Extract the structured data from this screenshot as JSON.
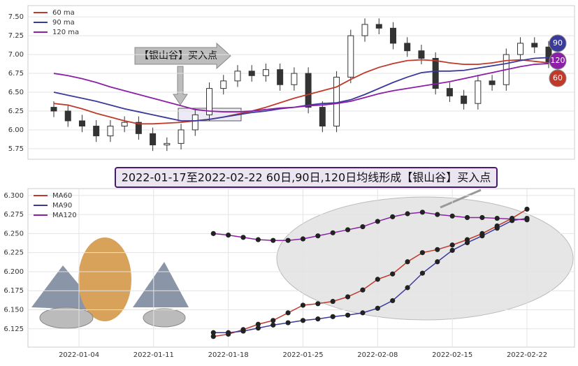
{
  "chart_data": [
    {
      "type": "candlestick",
      "annotation": "【银山谷】买入点",
      "ylim": [
        5.61,
        7.65
      ],
      "yticks": [
        5.75,
        {
          "value": 6,
          "label": "6.00"
        },
        6.25,
        {
          "value": 6.5,
          "label": "6.50"
        },
        6.75,
        {
          "value": 7,
          "label": "7.00"
        },
        7.25,
        {
          "value": 7.5,
          "label": "7.50"
        }
      ],
      "grid": true,
      "legend": "upper left",
      "candles": {
        "color": "#333333",
        "open": [
          6.3,
          6.25,
          6.12,
          6.05,
          5.92,
          6.05,
          6.1,
          5.95,
          5.8,
          5.82,
          6.0,
          6.2,
          6.55,
          6.65,
          6.78,
          6.72,
          6.8,
          6.6,
          6.75,
          6.3,
          6.05,
          6.7,
          7.25,
          7.4,
          7.35,
          7.15,
          7.05,
          6.95,
          6.55,
          6.45,
          6.35,
          6.65,
          6.6,
          7.0,
          7.15,
          7.1
        ],
        "high": [
          6.38,
          6.33,
          6.2,
          6.13,
          6.13,
          6.18,
          6.18,
          6.03,
          5.9,
          6.08,
          6.28,
          6.63,
          6.73,
          6.86,
          6.86,
          6.88,
          6.88,
          6.83,
          6.83,
          6.38,
          6.78,
          7.33,
          7.48,
          7.48,
          7.43,
          7.23,
          7.13,
          7.03,
          6.63,
          6.53,
          6.73,
          6.73,
          7.08,
          7.23,
          7.23,
          7.18
        ],
        "low": [
          6.17,
          6.04,
          5.97,
          5.84,
          5.84,
          5.97,
          5.87,
          5.72,
          5.72,
          5.74,
          5.92,
          6.12,
          6.47,
          6.57,
          6.64,
          6.64,
          6.52,
          6.52,
          6.22,
          5.97,
          5.97,
          6.62,
          7.17,
          7.27,
          7.07,
          6.97,
          6.87,
          6.47,
          6.37,
          6.27,
          6.27,
          6.52,
          6.52,
          6.92,
          7.02,
          6.82
        ],
        "close": [
          6.25,
          6.12,
          6.05,
          5.92,
          6.05,
          6.1,
          5.95,
          5.8,
          5.82,
          6.0,
          6.2,
          6.55,
          6.65,
          6.78,
          6.72,
          6.8,
          6.6,
          6.75,
          6.3,
          6.05,
          6.7,
          7.25,
          7.4,
          7.35,
          7.15,
          7.05,
          6.95,
          6.55,
          6.45,
          6.35,
          6.65,
          6.6,
          7.0,
          7.15,
          7.1,
          6.9
        ]
      },
      "series": [
        {
          "name": "60 ma",
          "color": "#c0392b",
          "end_label": "60",
          "values": [
            6.35,
            6.33,
            6.28,
            6.22,
            6.17,
            6.12,
            6.08,
            6.08,
            6.09,
            6.1,
            6.12,
            6.14,
            6.17,
            6.21,
            6.25,
            6.3,
            6.36,
            6.42,
            6.47,
            6.52,
            6.57,
            6.67,
            6.76,
            6.83,
            6.88,
            6.92,
            6.93,
            6.92,
            6.89,
            6.87,
            6.87,
            6.89,
            6.92,
            6.93,
            6.91,
            6.89
          ]
        },
        {
          "name": "90 ma",
          "color": "#3a3a9a",
          "end_label": "90",
          "values": [
            6.5,
            6.46,
            6.42,
            6.38,
            6.33,
            6.28,
            6.24,
            6.2,
            6.16,
            6.12,
            6.12,
            6.14,
            6.17,
            6.2,
            6.23,
            6.25,
            6.28,
            6.3,
            6.33,
            6.35,
            6.36,
            6.4,
            6.47,
            6.55,
            6.63,
            6.7,
            6.76,
            6.78,
            6.78,
            6.79,
            6.82,
            6.85,
            6.88,
            6.92,
            6.95,
            6.96
          ]
        },
        {
          "name": "120 ma",
          "color": "#8b1fa8",
          "end_label": "120",
          "values": [
            6.75,
            6.72,
            6.68,
            6.63,
            6.57,
            6.52,
            6.47,
            6.42,
            6.37,
            6.32,
            6.27,
            6.25,
            6.24,
            6.24,
            6.25,
            6.27,
            6.29,
            6.3,
            6.32,
            6.33,
            6.35,
            6.38,
            6.43,
            6.48,
            6.52,
            6.55,
            6.58,
            6.61,
            6.64,
            6.68,
            6.72,
            6.76,
            6.8,
            6.84,
            6.87,
            6.88
          ]
        }
      ]
    },
    {
      "type": "line",
      "title": "2022-01-17至2022-02-22 60日,90日,120日均线形成【银山谷】买入点",
      "categories": [
        "2022-01-04",
        null,
        null,
        null,
        null,
        "2022-01-11",
        null,
        null,
        null,
        null,
        "2022-01-18",
        null,
        null,
        null,
        null,
        "2022-01-25",
        null,
        null,
        null,
        null,
        "2022-02-08",
        null,
        null,
        null,
        null,
        "2022-02-15",
        null,
        null,
        null,
        null,
        "2022-02-22"
      ],
      "ylim": [
        6.101,
        6.309
      ],
      "yticks": [
        6.125,
        {
          "value": 6.15,
          "label": "6.150"
        },
        6.175,
        {
          "value": 6.2,
          "label": "6.200"
        },
        6.225,
        {
          "value": 6.25,
          "label": "6.250"
        },
        6.275,
        {
          "value": 6.3,
          "label": "6.300"
        }
      ],
      "grid": true,
      "legend": "upper left",
      "marker_color": "#222222",
      "series": [
        {
          "name": "MA60",
          "color": "#c0392b",
          "values": [
            null,
            null,
            null,
            null,
            null,
            null,
            null,
            null,
            null,
            6.115,
            6.118,
            6.124,
            6.131,
            6.136,
            6.146,
            6.156,
            6.158,
            6.161,
            6.167,
            6.176,
            6.19,
            6.197,
            6.213,
            6.225,
            6.229,
            6.235,
            6.242,
            6.25,
            6.26,
            6.27,
            6.282
          ]
        },
        {
          "name": "MA90",
          "color": "#3a3a9a",
          "values": [
            null,
            null,
            null,
            null,
            null,
            null,
            null,
            null,
            null,
            6.12,
            6.12,
            6.122,
            6.126,
            6.13,
            6.133,
            6.136,
            6.138,
            6.141,
            6.143,
            6.146,
            6.152,
            6.162,
            6.179,
            6.198,
            6.213,
            6.228,
            6.238,
            6.247,
            6.257,
            6.267,
            6.27
          ]
        },
        {
          "name": "MA120",
          "color": "#8b1fa8",
          "values": [
            null,
            null,
            null,
            null,
            null,
            null,
            null,
            null,
            null,
            6.25,
            6.248,
            6.245,
            6.242,
            6.241,
            6.241,
            6.243,
            6.247,
            6.251,
            6.255,
            6.259,
            6.266,
            6.272,
            6.276,
            6.278,
            6.275,
            6.273,
            6.271,
            6.271,
            6.27,
            6.269,
            6.268
          ]
        }
      ]
    }
  ]
}
